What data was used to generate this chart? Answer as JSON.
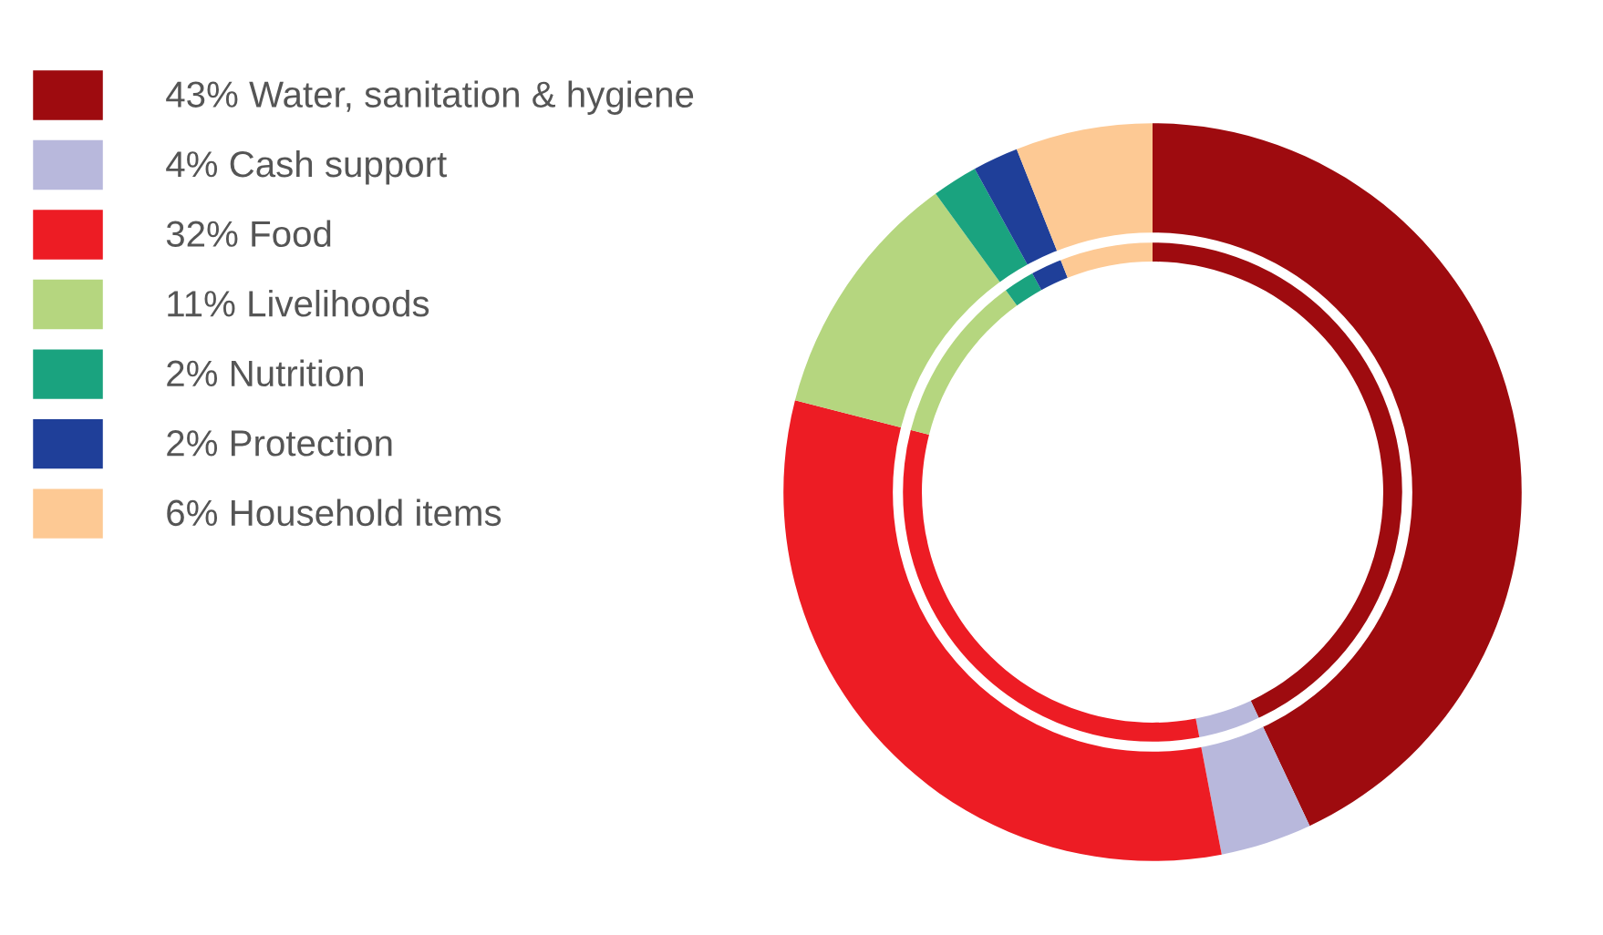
{
  "chart_data": {
    "type": "donut",
    "categories": [
      "43% Water, sanitation & hygiene",
      "4% Cash support",
      "32% Food",
      "11% Livelihoods",
      "2% Nutrition",
      "2% Protection",
      "6% Household items"
    ],
    "values": [
      43,
      4,
      32,
      11,
      2,
      2,
      6
    ],
    "colors": [
      "#9e0b0f",
      "#b8b8dc",
      "#ed1c24",
      "#b5d67f",
      "#1aa37f",
      "#1f3f99",
      "#fdc994"
    ],
    "legend": "top left"
  }
}
